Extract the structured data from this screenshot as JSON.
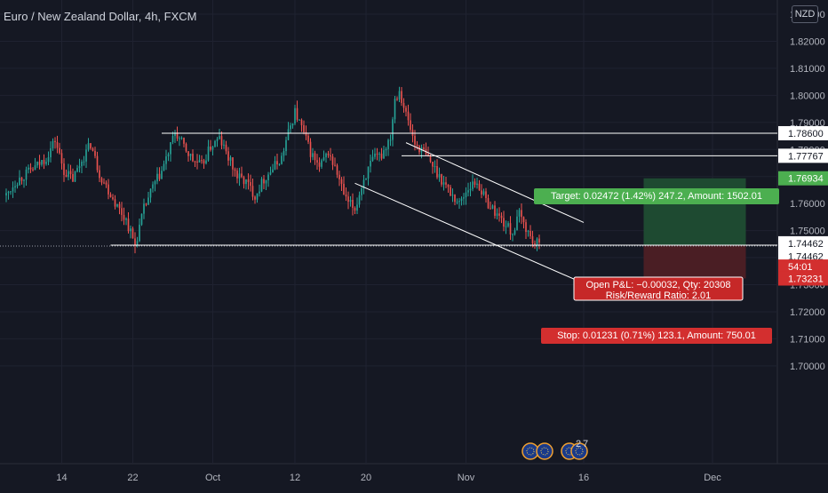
{
  "header": {
    "title": "Euro / New Zealand Dollar, 4h, FXCM",
    "currency_button": "NZD"
  },
  "colors": {
    "background": "#151823",
    "candle_up": "#26a69a",
    "candle_down": "#ef5350",
    "grid": "#1f2230",
    "axis_text": "#b2b5be",
    "target_zone": "#1e4a31",
    "stop_zone": "#4a1e24",
    "target_label": "#4caf50",
    "stop_label": "#d32f2f"
  },
  "chart_data": {
    "type": "candlestick",
    "symbol": "EURNZD",
    "timeframe": "4h",
    "ylim": [
      1.69,
      1.83
    ],
    "y_ticks": [
      "1.83000",
      "1.82000",
      "1.81000",
      "1.80000",
      "1.79000",
      "1.78000",
      "1.77000",
      "1.76000",
      "1.75000",
      "1.74000",
      "1.73000",
      "1.72000",
      "1.71000",
      "1.70000"
    ],
    "x_ticks": [
      "14",
      "22",
      "Oct",
      "12",
      "20",
      "Nov",
      "16",
      "Dec"
    ],
    "price_path": [
      [
        0,
        1.763
      ],
      [
        4,
        1.768
      ],
      [
        9,
        1.771
      ],
      [
        14,
        1.774
      ],
      [
        18,
        1.777
      ],
      [
        22,
        1.7835
      ],
      [
        26,
        1.772
      ],
      [
        30,
        1.769
      ],
      [
        34,
        1.776
      ],
      [
        38,
        1.782
      ],
      [
        42,
        1.771
      ],
      [
        46,
        1.765
      ],
      [
        50,
        1.759
      ],
      [
        54,
        1.754
      ],
      [
        58,
        1.7445
      ],
      [
        62,
        1.758
      ],
      [
        66,
        1.766
      ],
      [
        70,
        1.772
      ],
      [
        74,
        1.781
      ],
      [
        76,
        1.7865
      ],
      [
        80,
        1.781
      ],
      [
        84,
        1.776
      ],
      [
        88,
        1.774
      ],
      [
        92,
        1.781
      ],
      [
        96,
        1.784
      ],
      [
        100,
        1.777
      ],
      [
        104,
        1.77
      ],
      [
        108,
        1.768
      ],
      [
        112,
        1.763
      ],
      [
        116,
        1.769
      ],
      [
        120,
        1.773
      ],
      [
        124,
        1.777
      ],
      [
        127,
        1.786
      ],
      [
        130,
        1.794
      ],
      [
        133,
        1.788
      ],
      [
        137,
        1.779
      ],
      [
        141,
        1.773
      ],
      [
        145,
        1.779
      ],
      [
        149,
        1.771
      ],
      [
        153,
        1.761
      ],
      [
        157,
        1.758
      ],
      [
        161,
        1.769
      ],
      [
        165,
        1.776
      ],
      [
        169,
        1.778
      ],
      [
        173,
        1.785
      ],
      [
        175,
        1.799
      ],
      [
        177,
        1.802
      ],
      [
        180,
        1.793
      ],
      [
        184,
        1.782
      ],
      [
        188,
        1.779
      ],
      [
        192,
        1.774
      ],
      [
        196,
        1.769
      ],
      [
        200,
        1.764
      ],
      [
        204,
        1.76
      ],
      [
        208,
        1.766
      ],
      [
        212,
        1.768
      ],
      [
        216,
        1.761
      ],
      [
        220,
        1.757
      ],
      [
        224,
        1.753
      ],
      [
        228,
        1.749
      ],
      [
        231,
        1.756
      ],
      [
        234,
        1.751
      ],
      [
        237,
        1.746
      ],
      [
        240,
        1.7446
      ]
    ],
    "annotations": {
      "horizontal_lines": [
        1.786,
        1.77767,
        1.74462
      ],
      "channel": {
        "upper": {
          "start": [
            180,
            1.7825
          ],
          "end": [
            260,
            1.753
          ]
        },
        "lower": {
          "start": [
            157,
            1.7675
          ],
          "end": [
            260,
            1.7305
          ]
        }
      },
      "long_position": {
        "entry": 1.74462,
        "target": 1.76934,
        "stop": 1.73231,
        "x_range": [
          287,
          333
        ]
      }
    }
  },
  "price_axis": {
    "tags": [
      {
        "label": "1.78600",
        "bg": "#ffffff",
        "fg": "#131722",
        "price": 1.786
      },
      {
        "label": "1.77767",
        "bg": "#ffffff",
        "fg": "#131722",
        "price": 1.77767
      },
      {
        "label": "1.76934",
        "bg": "#4caf50",
        "fg": "#ffffff",
        "price": 1.76934
      },
      {
        "label": "1.74462",
        "bg": "#ffffff",
        "fg": "#131722",
        "price": 1.7453
      },
      {
        "label": "1.74462",
        "bg": "#ffffff",
        "fg": "#131722",
        "price": 1.7405
      },
      {
        "label": "54:01",
        "bg": "#d32f2f",
        "fg": "#ffffff",
        "price": 1.7367
      },
      {
        "label": "1.73231",
        "bg": "#d32f2f",
        "fg": "#ffffff",
        "price": 1.7323
      }
    ]
  },
  "position_labels": {
    "target": "Target: 0.02472 (1.42%) 247.2, Amount: 1502.01",
    "open_pnl": "Open P&L: −0.00032, Qty: 20308",
    "risk_reward": "Risk/Reward Ratio: 2.01",
    "stop": "Stop: 0.01231 (0.71%) 123.1, Amount: 750.01"
  },
  "events": {
    "icons": [
      "eu-flag-icon",
      "eu-flag-icon",
      "eu-flag-icon",
      "eu-flag-icon"
    ],
    "more_count": "2",
    "more_count_2": "7"
  }
}
